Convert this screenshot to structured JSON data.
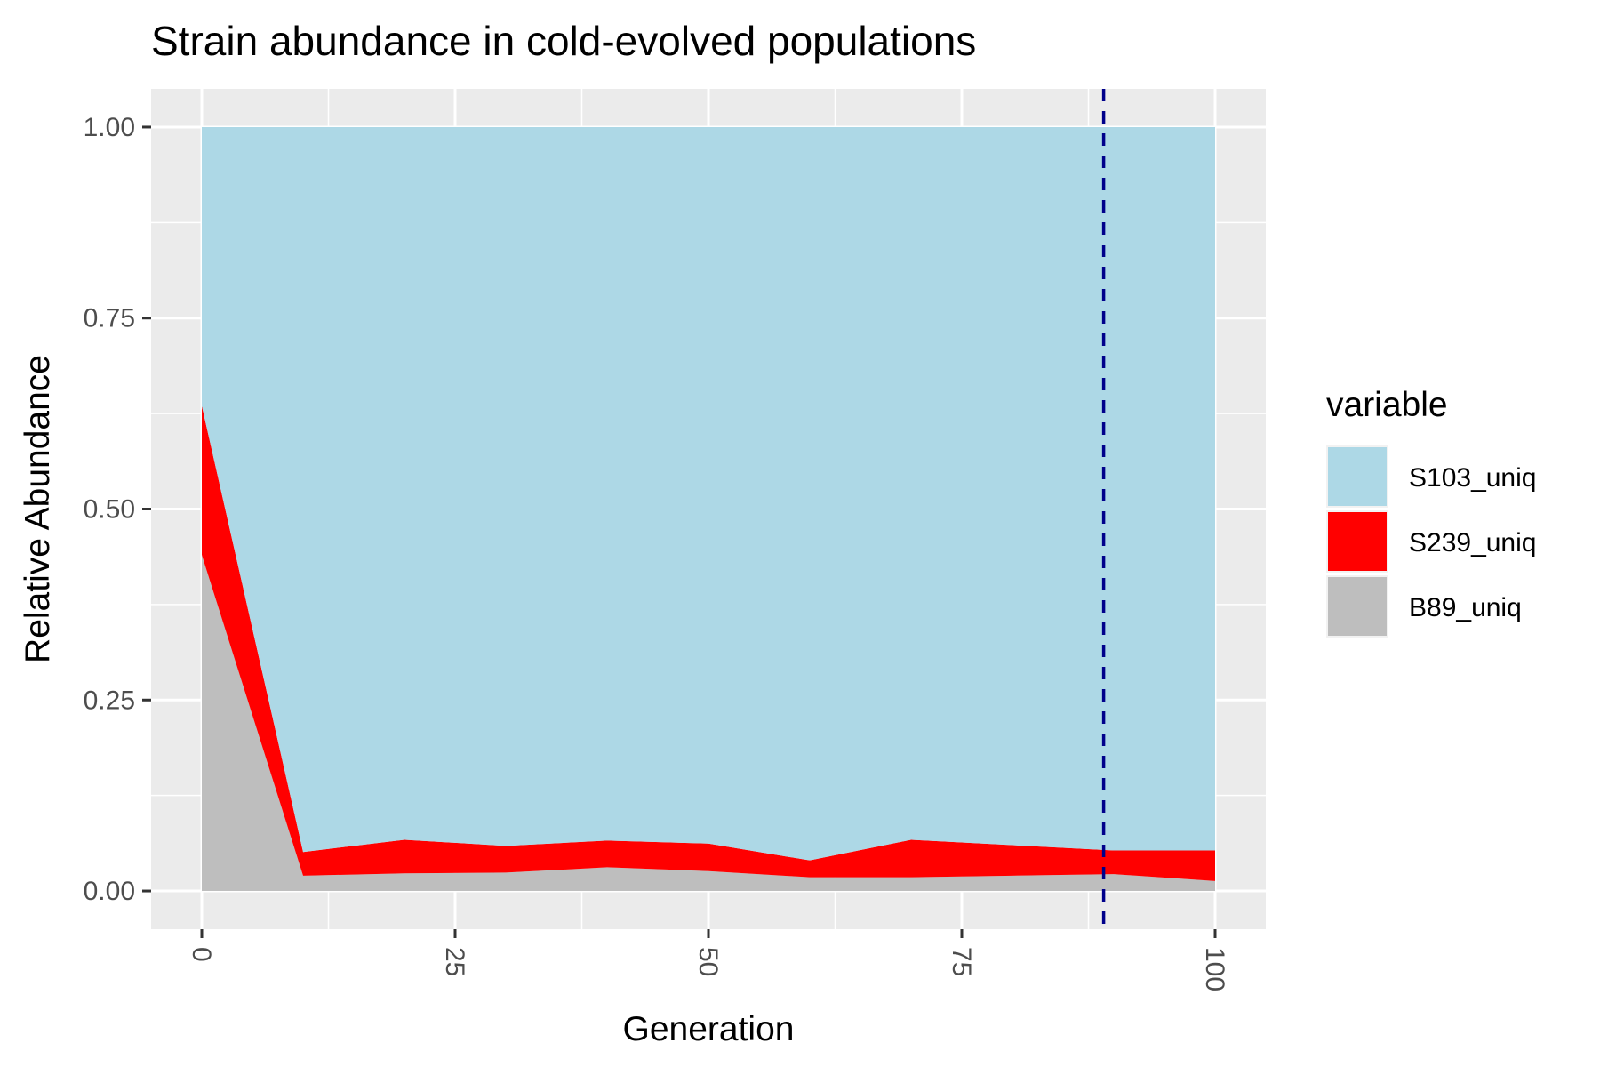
{
  "chart_data": {
    "type": "area",
    "stacked": true,
    "title": "Strain abundance in cold-evolved populations",
    "xlabel": "Generation",
    "ylabel": "Relative Abundance",
    "x": [
      0,
      10,
      20,
      30,
      40,
      50,
      60,
      70,
      80,
      90,
      100
    ],
    "xlim": [
      -5,
      105
    ],
    "ylim": [
      -0.05,
      1.05
    ],
    "x_ticks": [
      "0",
      "25",
      "50",
      "75",
      "100"
    ],
    "x_tick_values": [
      0,
      25,
      50,
      75,
      100
    ],
    "y_ticks": [
      "0.00",
      "0.25",
      "0.50",
      "0.75",
      "1.00"
    ],
    "y_tick_values": [
      0,
      0.25,
      0.5,
      0.75,
      1.0
    ],
    "x_tick_rotation": "vertical",
    "grid": true,
    "legend": {
      "title": "variable",
      "placement": "right"
    },
    "series": [
      {
        "name": "B89_uniq",
        "color": "#bebebe",
        "values": [
          0.44,
          0.02,
          0.023,
          0.024,
          0.031,
          0.026,
          0.018,
          0.018,
          0.02,
          0.022,
          0.013
        ]
      },
      {
        "name": "S239_uniq",
        "color": "#ff0000",
        "values": [
          0.195,
          0.031,
          0.044,
          0.035,
          0.035,
          0.036,
          0.022,
          0.049,
          0.04,
          0.031,
          0.04
        ]
      },
      {
        "name": "S103_uniq",
        "color": "#add8e6",
        "values": [
          0.365,
          0.949,
          0.933,
          0.941,
          0.934,
          0.938,
          0.96,
          0.933,
          0.94,
          0.947,
          0.947
        ]
      }
    ],
    "legend_order": [
      "S103_uniq",
      "S239_uniq",
      "B89_uniq"
    ],
    "reference_line": {
      "orientation": "vertical",
      "x": 89,
      "style": "dashed",
      "color": "#00008b"
    },
    "panel_background": "#ebebeb",
    "grid_color": "#ffffff"
  }
}
